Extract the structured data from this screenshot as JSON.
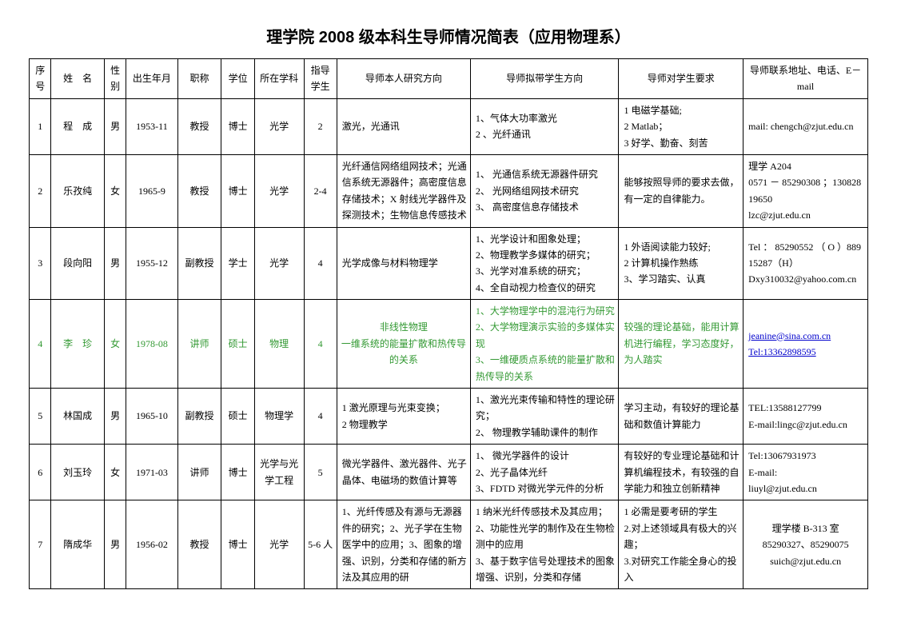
{
  "title": "理学院 2008 级本科生导师情况简表（应用物理系）",
  "headers": {
    "idx": "序号",
    "name": "姓　名",
    "sex": "性别",
    "dob": "出生年月",
    "title": "职称",
    "degree": "学位",
    "dept": "所在学科",
    "num": "指导学生",
    "research": "导师本人研究方向",
    "direction": "导师拟带学生方向",
    "requirement": "导师对学生要求",
    "contact": "导师联系地址、电话、E－mail"
  },
  "rows": [
    {
      "idx": "1",
      "name": "程　成",
      "sex": "男",
      "dob": "1953-11",
      "title": "教授",
      "degree": "博士",
      "dept": "光学",
      "num": "2",
      "research": "激光，光通讯",
      "direction": "1、气体大功率激光\n2 、光纤通讯",
      "requirement": "1 电磁学基础;\n2 Matlab；\n3 好学、勤奋、刻苦",
      "contact": "mail: chengch@zjut.edu.cn"
    },
    {
      "idx": "2",
      "name": "乐孜纯",
      "sex": "女",
      "dob": "1965-9",
      "title": "教授",
      "degree": "博士",
      "dept": "光学",
      "num": "2-4",
      "research": "光纤通信网络组网技术；光通信系统无源器件；高密度信息存储技术；X 射线光学器件及探测技术；生物信息传感技术",
      "direction": "1、 光通信系统无源器件研究\n2、 光网络组网技术研究\n3、 高密度信息存储技术",
      "requirement": "能够按照导师的要求去做，有一定的自律能力。",
      "contact": "理学 A204\n0571 － 85290308 ；13082819650\nlzc@zjut.edu.cn"
    },
    {
      "idx": "3",
      "name": "段向阳",
      "sex": "男",
      "dob": "1955-12",
      "title": "副教授",
      "degree": "学士",
      "dept": "光学",
      "num": "4",
      "research": "光学成像与材料物理学",
      "direction": "1、光学设计和图象处理；\n2、物理教学多媒体的研究；\n3、光学对准系统的研究；\n4、全自动视力检查仪的研究",
      "requirement": "1 外语阅读能力较好;\n2 计算机操作熟练\n3、学习踏实、认真",
      "contact": "Tel ： 85290552 （ O ）88915287（H）\nDxy310032@yahoo.com.cn"
    },
    {
      "idx": "4",
      "name": "李　珍",
      "sex": "女",
      "dob": "1978-08",
      "title": "讲师",
      "degree": "硕士",
      "dept": "物理",
      "num": "4",
      "research": "非线性物理\n一维系统的能量扩散和热传导的关系",
      "direction": "1、大学物理学中的混沌行为研究\n2、大学物理演示实验的多媒体实现\n3、一维硬质点系统的能量扩散和热传导的关系",
      "requirement": "较强的理论基础，能用计算机进行编程，学习态度好，为人踏实",
      "contact_link": "jeanine@sina.com.cn\nTel:13362898595",
      "green": true
    },
    {
      "idx": "5",
      "name": "林国成",
      "sex": "男",
      "dob": "1965-10",
      "title": "副教授",
      "degree": "硕士",
      "dept": "物理学",
      "num": "4",
      "research": "1 激光原理与光束变换；\n2 物理教学",
      "direction": "1、激光光束传输和特性的理论研究；\n2、 物理教学辅助课件的制作",
      "requirement": "学习主动，有较好的理论基础和数值计算能力",
      "contact": "TEL:13588127799\nE-mail:lingc@zjut.edu.cn"
    },
    {
      "idx": "6",
      "name": "刘玉玲",
      "sex": "女",
      "dob": "1971-03",
      "title": "讲师",
      "degree": "博士",
      "dept": "光学与光学工程",
      "num": "5",
      "research": "微光学器件、激光器件、光子晶体、电磁场的数值计算等",
      "direction": "1、 微光学器件的设计\n2、光子晶体光纤\n3、FDTD 对微光学元件的分析",
      "requirement": "有较好的专业理论基础和计算机编程技术，有较强的自学能力和独立创新精神",
      "contact": "Tel:13067931973\nE-mail:\nliuyl@zjut.edu.cn"
    },
    {
      "idx": "7",
      "name": "隋成华",
      "sex": "男",
      "dob": "1956-02",
      "title": "教授",
      "degree": "博士",
      "dept": "光学",
      "num": "5-6 人",
      "research": "1、光纤传感及有源与无源器件的研究；2、光子学在生物医学中的应用；3、图象的增强、识别，分类和存储的新方法及其应用的研",
      "direction": "1 纳米光纤传感技术及其应用；\n2、功能性光学的制作及在生物检测中的应用\n3、基于数字信号处理技术的图象增强、识别，分类和存储",
      "requirement": "1 必需是要考研的学生\n2.对上述领域具有极大的兴趣；\n3.对研究工作能全身心的投入",
      "contact": "理学楼 B-313 室\n85290327、85290075\nsuich@zjut.edu.cn"
    }
  ]
}
